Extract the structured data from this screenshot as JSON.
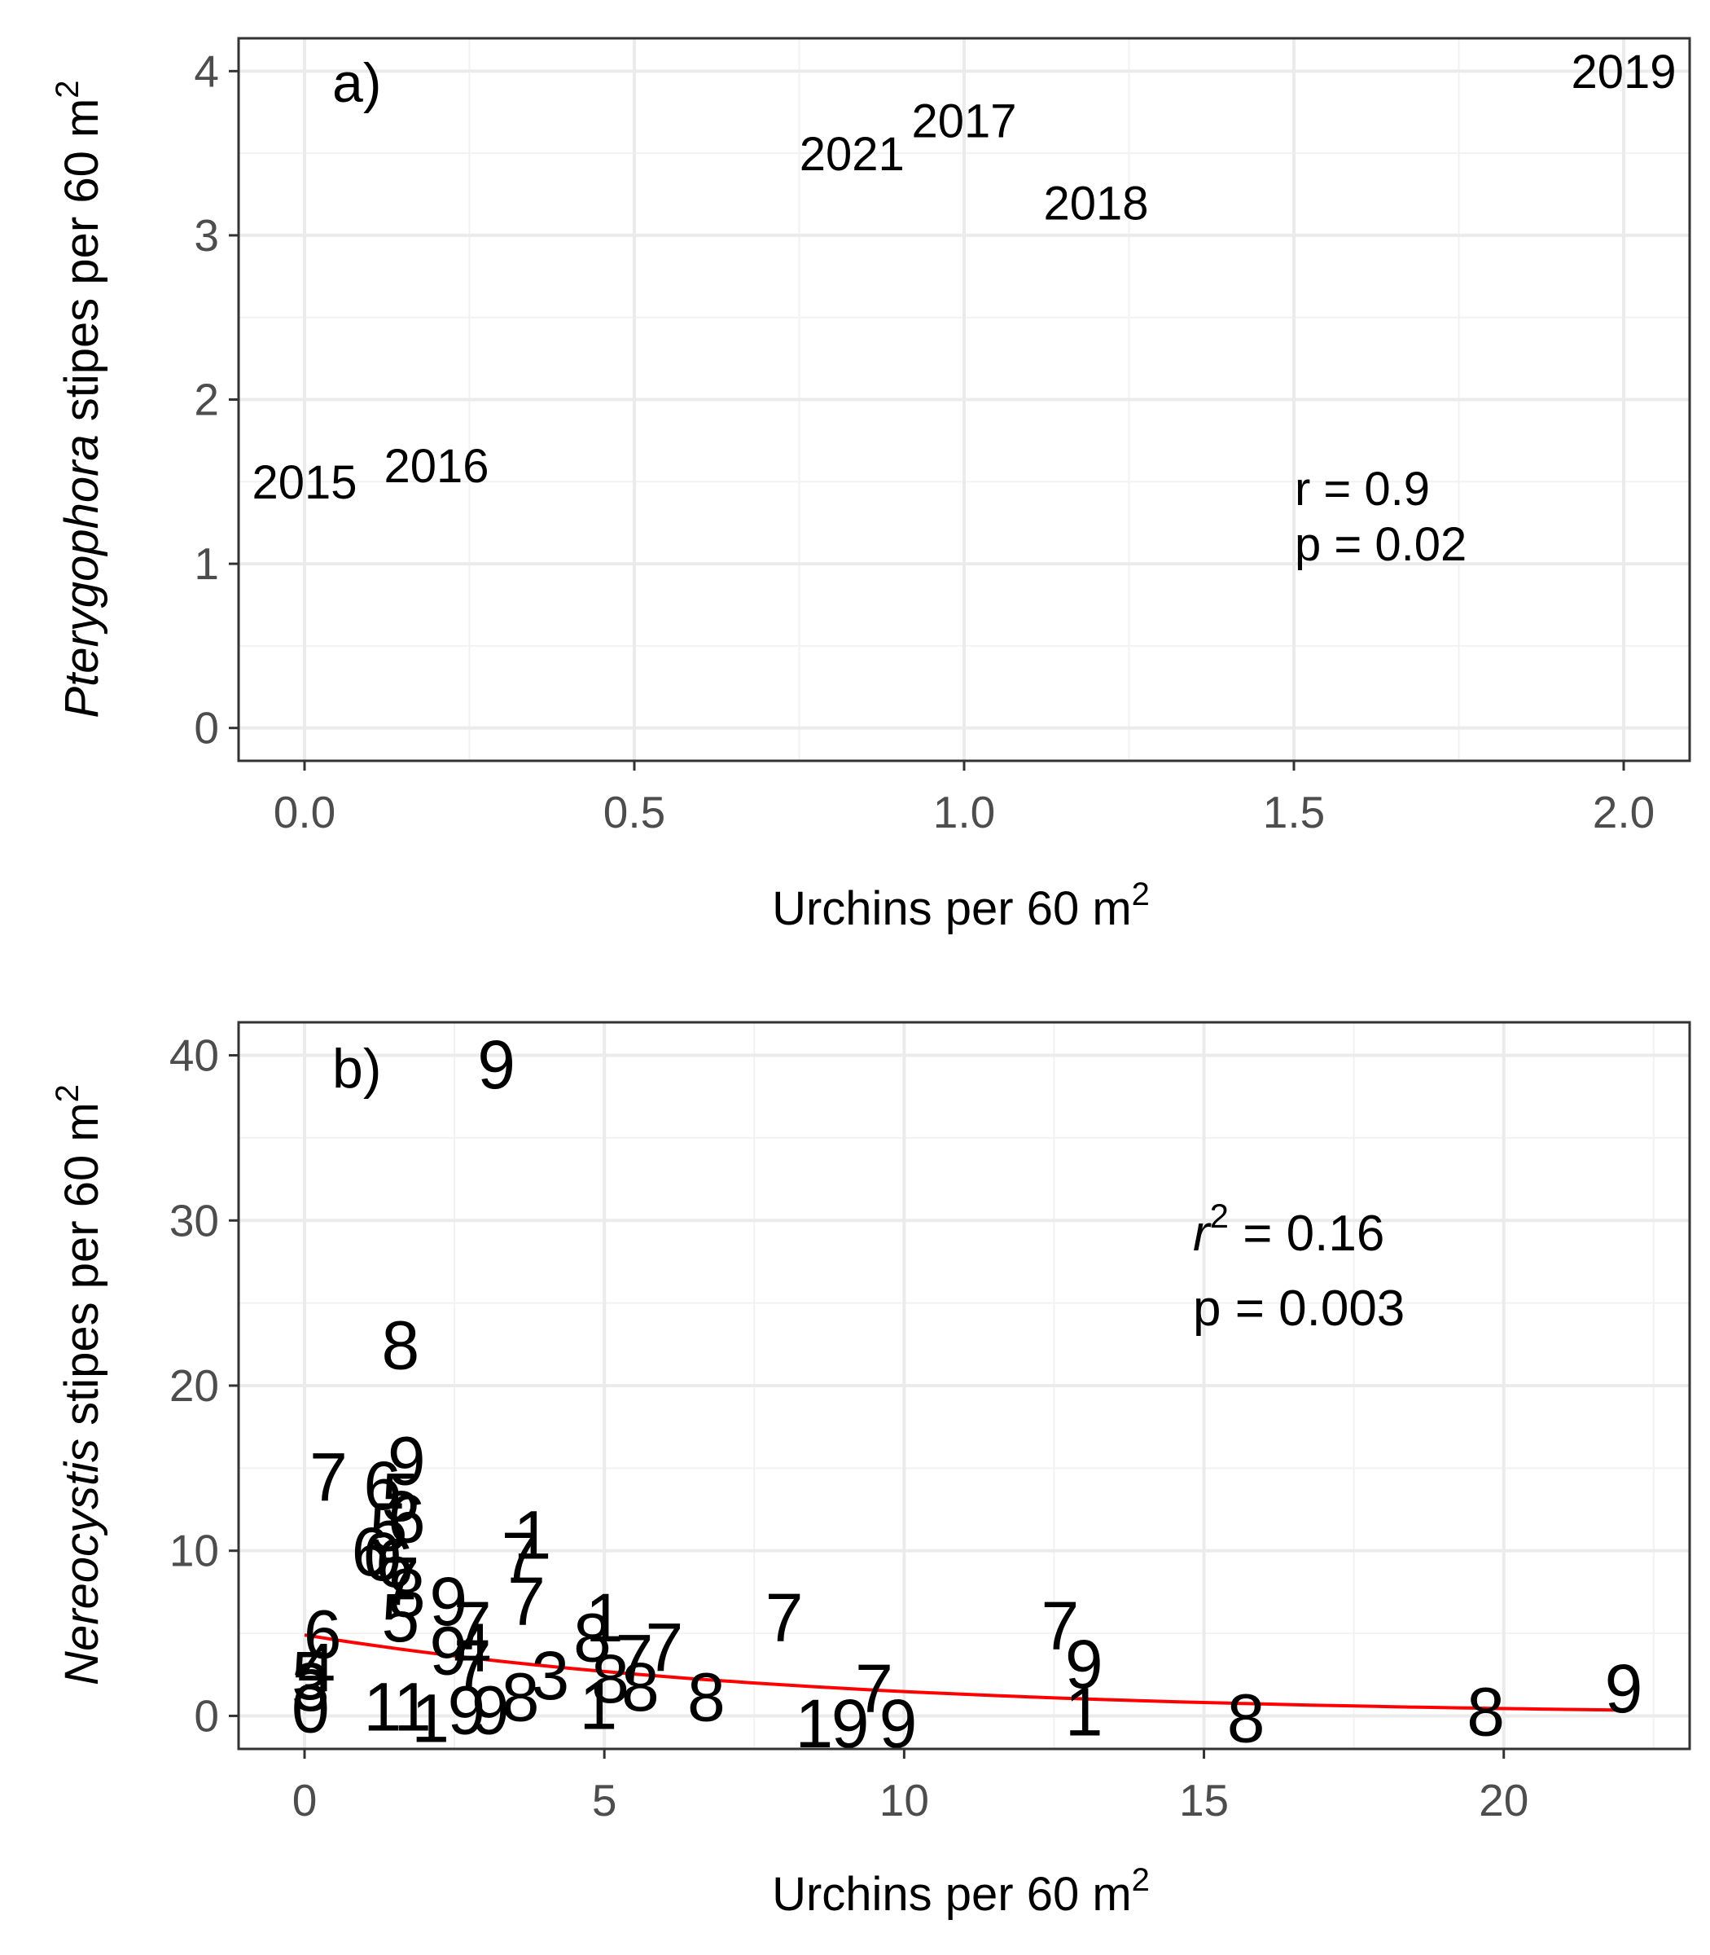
{
  "chart_data": [
    {
      "type": "scatter",
      "panel_label": "a)",
      "xlabel": "Urchins per 60 m",
      "xlabel_sup": "2",
      "ylabel_italic": "Pterygophora",
      "ylabel_rest": " stipes per 60 m",
      "ylabel_sup": "2",
      "xlim": [
        -0.1,
        2.1
      ],
      "ylim": [
        -0.2,
        4.2
      ],
      "xticks": [
        0.0,
        0.5,
        1.0,
        1.5,
        2.0
      ],
      "xtick_labels": [
        "0.0",
        "0.5",
        "1.0",
        "1.5",
        "2.0"
      ],
      "yticks": [
        0,
        1,
        2,
        3,
        4
      ],
      "ytick_labels": [
        "0",
        "1",
        "2",
        "3",
        "4"
      ],
      "grid": true,
      "points": [
        {
          "x": 0.0,
          "y": 1.5,
          "label": "2015"
        },
        {
          "x": 0.2,
          "y": 1.6,
          "label": "2016"
        },
        {
          "x": 1.0,
          "y": 3.7,
          "label": "2017"
        },
        {
          "x": 1.2,
          "y": 3.2,
          "label": "2018"
        },
        {
          "x": 2.0,
          "y": 4.0,
          "label": "2019"
        },
        {
          "x": 0.83,
          "y": 3.5,
          "label": "2021"
        }
      ],
      "stats": {
        "line1": "r = 0.9",
        "line2": "p = 0.02"
      }
    },
    {
      "type": "scatter",
      "panel_label": "b)",
      "xlabel": "Urchins per 60 m",
      "xlabel_sup": "2",
      "ylabel_italic": "Nereocystis",
      "ylabel_rest": " stipes per 60 m",
      "ylabel_sup": "2",
      "xlim": [
        -1.1,
        23.1
      ],
      "ylim": [
        -2,
        42
      ],
      "xticks": [
        0,
        5,
        10,
        15,
        20
      ],
      "xtick_labels": [
        "0",
        "5",
        "10",
        "15",
        "20"
      ],
      "yticks": [
        0,
        10,
        20,
        30,
        40
      ],
      "ytick_labels": [
        "0",
        "10",
        "20",
        "30",
        "40"
      ],
      "grid": true,
      "points": [
        {
          "x": 3.2,
          "y": 39.5,
          "label": "9"
        },
        {
          "x": 1.6,
          "y": 22.5,
          "label": "8"
        },
        {
          "x": 0.4,
          "y": 14.5,
          "label": "7"
        },
        {
          "x": 1.7,
          "y": 15.5,
          "label": "9"
        },
        {
          "x": 1.3,
          "y": 14.0,
          "label": "6"
        },
        {
          "x": 1.6,
          "y": 13.3,
          "label": "5"
        },
        {
          "x": 1.7,
          "y": 12.0,
          "label": "6"
        },
        {
          "x": 1.4,
          "y": 11.5,
          "label": "5"
        },
        {
          "x": 3.8,
          "y": 11.0,
          "label": "1"
        },
        {
          "x": 1.1,
          "y": 10.0,
          "label": "6"
        },
        {
          "x": 1.3,
          "y": 9.7,
          "label": "0"
        },
        {
          "x": 1.5,
          "y": 9.3,
          "label": "6"
        },
        {
          "x": 3.6,
          "y": 9.7,
          "label": "7"
        },
        {
          "x": 1.6,
          "y": 8.2,
          "label": "7"
        },
        {
          "x": 3.7,
          "y": 7.0,
          "label": "7"
        },
        {
          "x": 1.7,
          "y": 7.5,
          "label": "8"
        },
        {
          "x": 2.4,
          "y": 7.0,
          "label": "9"
        },
        {
          "x": 1.6,
          "y": 6.0,
          "label": "5"
        },
        {
          "x": 8.0,
          "y": 6.0,
          "label": "7"
        },
        {
          "x": 12.6,
          "y": 5.5,
          "label": "7"
        },
        {
          "x": 5.0,
          "y": 6.0,
          "label": "1"
        },
        {
          "x": 2.8,
          "y": 5.5,
          "label": "7"
        },
        {
          "x": 2.8,
          "y": 4.2,
          "label": "4"
        },
        {
          "x": 0.3,
          "y": 5.0,
          "label": "6"
        },
        {
          "x": 4.8,
          "y": 4.8,
          "label": "8"
        },
        {
          "x": 2.4,
          "y": 4.0,
          "label": "9"
        },
        {
          "x": 6.0,
          "y": 4.2,
          "label": "7"
        },
        {
          "x": 5.5,
          "y": 3.5,
          "label": "7"
        },
        {
          "x": 13.0,
          "y": 3.2,
          "label": "9"
        },
        {
          "x": 2.8,
          "y": 3.2,
          "label": "7"
        },
        {
          "x": 0.2,
          "y": 3.0,
          "label": "4"
        },
        {
          "x": 0.1,
          "y": 2.5,
          "label": "5"
        },
        {
          "x": 4.1,
          "y": 2.5,
          "label": "3"
        },
        {
          "x": 5.1,
          "y": 2.3,
          "label": "8"
        },
        {
          "x": 9.5,
          "y": 1.7,
          "label": "7"
        },
        {
          "x": 22.0,
          "y": 1.7,
          "label": "9"
        },
        {
          "x": 0.1,
          "y": 1.8,
          "label": "3"
        },
        {
          "x": 5.6,
          "y": 1.8,
          "label": "8"
        },
        {
          "x": 6.7,
          "y": 1.2,
          "label": "8"
        },
        {
          "x": 3.6,
          "y": 1.2,
          "label": "8"
        },
        {
          "x": 4.9,
          "y": 0.7,
          "label": "1"
        },
        {
          "x": 1.3,
          "y": 0.6,
          "label": "1"
        },
        {
          "x": 1.8,
          "y": 0.6,
          "label": "1"
        },
        {
          "x": 2.7,
          "y": 0.4,
          "label": "9"
        },
        {
          "x": 3.1,
          "y": 0.4,
          "label": "9"
        },
        {
          "x": 0.1,
          "y": 0.5,
          "label": "0"
        },
        {
          "x": 13.0,
          "y": 0.3,
          "label": "1"
        },
        {
          "x": 19.7,
          "y": 0.3,
          "label": "8"
        },
        {
          "x": 15.7,
          "y": -0.1,
          "label": "8"
        },
        {
          "x": 2.1,
          "y": -0.1,
          "label": "1"
        },
        {
          "x": 8.5,
          "y": -0.4,
          "label": "1"
        },
        {
          "x": 9.1,
          "y": -0.4,
          "label": "9"
        },
        {
          "x": 9.9,
          "y": -0.4,
          "label": "9"
        }
      ],
      "fit_curve": {
        "color": "#ff0000",
        "a": 4.9,
        "b": -0.12,
        "x_from": 0.0,
        "x_to": 22.0
      },
      "stats": {
        "r2_symbol": "r",
        "r2_sup": "2",
        "r2_rest": " = 0.16",
        "line2": "p = 0.003"
      }
    }
  ]
}
